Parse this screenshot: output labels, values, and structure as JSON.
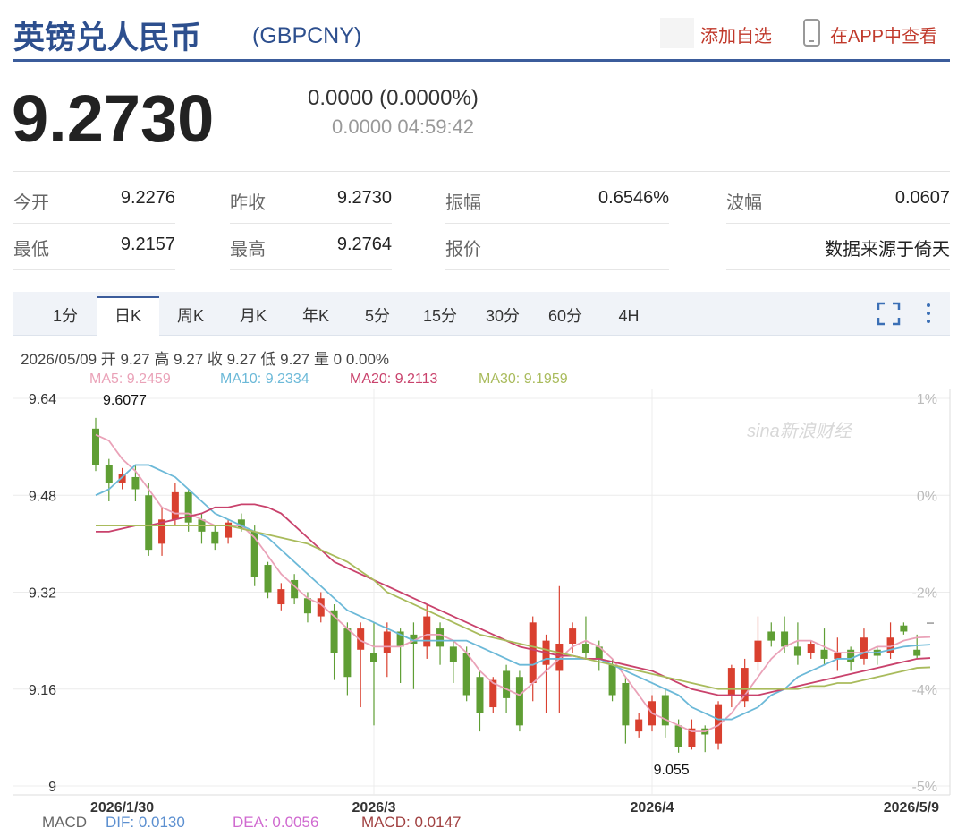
{
  "header": {
    "title": "英镑兑人民币",
    "code": "(GBPCNY)",
    "add_watch": "添加自选",
    "open_app": "在APP中查看"
  },
  "quote": {
    "price": "9.2730",
    "change": "0.0000 (0.0000%)",
    "sub": "0.0000 04:59:42"
  },
  "stats": {
    "rows": [
      [
        {
          "label": "今开",
          "value": "9.2276"
        },
        {
          "label": "昨收",
          "value": "9.2730"
        },
        {
          "label": "振幅",
          "value": "0.6546%"
        },
        {
          "label": "波幅",
          "value": "0.0607"
        }
      ],
      [
        {
          "label": "最低",
          "value": "9.2157"
        },
        {
          "label": "最高",
          "value": "9.2764"
        },
        {
          "label": "报价"
        },
        {
          "value": "数据来源于倚天"
        }
      ]
    ]
  },
  "tabs": [
    "1分",
    "日K",
    "周K",
    "月K",
    "年K",
    "5分",
    "15分",
    "30分",
    "60分",
    "4H"
  ],
  "info_line": "2026/05/09 开 9.27 高 9.27 收 9.27 低 9.27 量 0 0.00%",
  "watermark": "sina新浪财经",
  "macd": {
    "title": "MACD",
    "dif": "DIF: 0.0130",
    "dea": "DEA: 0.0056",
    "macd": "MACD: 0.0147"
  },
  "chart_data": {
    "type": "candlestick",
    "categories": [
      "2026/1/30",
      null,
      null,
      null,
      null,
      null,
      null,
      null,
      null,
      null,
      null,
      null,
      null,
      null,
      null,
      null,
      null,
      null,
      null,
      null,
      null,
      "2026/3",
      null,
      null,
      null,
      null,
      null,
      null,
      null,
      null,
      null,
      null,
      null,
      null,
      null,
      null,
      null,
      null,
      null,
      null,
      null,
      null,
      "2026/4",
      null,
      null,
      null,
      null,
      null,
      null,
      null,
      null,
      null,
      null,
      null,
      null,
      null,
      null,
      null,
      null,
      null,
      null,
      null,
      null,
      "2026/5/9"
    ],
    "open": [
      9.59,
      9.53,
      9.5,
      9.51,
      9.48,
      9.4,
      9.44,
      9.485,
      9.44,
      9.42,
      9.41,
      9.44,
      9.42,
      9.365,
      9.3,
      9.34,
      9.31,
      9.28,
      9.29,
      9.26,
      9.225,
      9.22,
      9.22,
      9.255,
      9.25,
      9.23,
      9.26,
      9.23,
      9.22,
      9.18,
      9.13,
      9.19,
      9.18,
      9.17,
      9.2,
      9.19,
      9.235,
      9.235,
      9.23,
      9.2,
      9.17,
      9.09,
      9.1,
      9.15,
      9.1,
      9.065,
      9.095,
      9.07,
      9.15,
      9.14,
      9.205,
      9.255,
      9.255,
      9.23,
      9.22,
      9.225,
      9.21,
      9.225,
      9.21,
      9.225,
      9.22,
      9.265,
      9.225,
      9.27
    ],
    "high": [
      9.6077,
      9.54,
      9.525,
      9.53,
      9.5,
      9.46,
      9.5,
      9.49,
      9.45,
      9.43,
      9.44,
      9.45,
      9.43,
      9.37,
      9.335,
      9.35,
      9.32,
      9.32,
      9.3,
      9.27,
      9.27,
      9.27,
      9.27,
      9.26,
      9.27,
      9.3,
      9.27,
      9.24,
      9.23,
      9.19,
      9.18,
      9.2,
      9.19,
      9.28,
      9.25,
      9.33,
      9.27,
      9.28,
      9.24,
      9.21,
      9.18,
      9.12,
      9.15,
      9.16,
      9.11,
      9.11,
      9.1,
      9.14,
      9.2,
      9.21,
      9.28,
      9.27,
      9.28,
      9.27,
      9.24,
      9.26,
      9.245,
      9.23,
      9.26,
      9.23,
      9.27,
      9.27,
      9.25,
      9.27
    ],
    "low": [
      9.52,
      9.47,
      9.49,
      9.47,
      9.38,
      9.38,
      9.43,
      9.42,
      9.4,
      9.39,
      9.4,
      9.42,
      9.33,
      9.31,
      9.29,
      9.3,
      9.27,
      9.27,
      9.175,
      9.15,
      9.13,
      9.1,
      9.18,
      9.17,
      9.16,
      9.21,
      9.2,
      9.17,
      9.14,
      9.09,
      9.12,
      9.12,
      9.09,
      9.14,
      9.12,
      9.12,
      9.22,
      9.21,
      9.19,
      9.14,
      9.07,
      9.08,
      9.09,
      9.08,
      9.055,
      9.06,
      9.0559,
      9.06,
      9.13,
      9.13,
      9.19,
      9.23,
      9.22,
      9.2,
      9.21,
      9.2,
      9.19,
      9.19,
      9.2,
      9.2,
      9.21,
      9.25,
      9.21,
      9.27
    ],
    "close": [
      9.53,
      9.5,
      9.515,
      9.49,
      9.39,
      9.44,
      9.485,
      9.435,
      9.42,
      9.4,
      9.435,
      9.425,
      9.345,
      9.32,
      9.325,
      9.31,
      9.285,
      9.31,
      9.22,
      9.18,
      9.26,
      9.205,
      9.255,
      9.23,
      9.235,
      9.28,
      9.23,
      9.205,
      9.15,
      9.12,
      9.175,
      9.145,
      9.1,
      9.27,
      9.24,
      9.235,
      9.26,
      9.22,
      9.21,
      9.15,
      9.1,
      9.11,
      9.14,
      9.1,
      9.065,
      9.095,
      9.085,
      9.135,
      9.195,
      9.195,
      9.24,
      9.24,
      9.23,
      9.215,
      9.235,
      9.21,
      9.22,
      9.205,
      9.245,
      9.215,
      9.245,
      9.255,
      9.215,
      9.27
    ],
    "up_color": "#d9402f",
    "down_color": "#5f9e34",
    "flat_color": "#999999",
    "series": [
      {
        "name": "MA5",
        "legend_label": "MA5: 9.2459",
        "color": "#eaa2b8",
        "values": [
          9.58,
          9.57,
          9.54,
          9.52,
          9.49,
          9.46,
          9.45,
          9.45,
          9.44,
          9.43,
          9.43,
          9.43,
          9.41,
          9.38,
          9.35,
          9.33,
          9.31,
          9.3,
          9.28,
          9.26,
          9.24,
          9.23,
          9.23,
          9.23,
          9.24,
          9.25,
          9.25,
          9.24,
          9.22,
          9.19,
          9.17,
          9.16,
          9.15,
          9.17,
          9.19,
          9.21,
          9.23,
          9.24,
          9.23,
          9.21,
          9.18,
          9.15,
          9.12,
          9.11,
          9.1,
          9.09,
          9.09,
          9.1,
          9.12,
          9.15,
          9.18,
          9.21,
          9.23,
          9.24,
          9.24,
          9.23,
          9.22,
          9.22,
          9.22,
          9.23,
          9.23,
          9.24,
          9.245,
          9.2459
        ]
      },
      {
        "name": "MA10",
        "legend_label": "MA10: 9.2334",
        "color": "#6cb9d8",
        "values": [
          9.48,
          9.49,
          9.51,
          9.53,
          9.53,
          9.52,
          9.51,
          9.49,
          9.47,
          9.45,
          9.44,
          9.43,
          9.42,
          9.41,
          9.39,
          9.37,
          9.35,
          9.33,
          9.31,
          9.29,
          9.28,
          9.27,
          9.26,
          9.25,
          9.24,
          9.24,
          9.24,
          9.24,
          9.24,
          9.23,
          9.22,
          9.21,
          9.2,
          9.2,
          9.21,
          9.21,
          9.21,
          9.21,
          9.21,
          9.2,
          9.19,
          9.18,
          9.17,
          9.16,
          9.15,
          9.13,
          9.12,
          9.11,
          9.11,
          9.12,
          9.13,
          9.15,
          9.16,
          9.18,
          9.19,
          9.2,
          9.21,
          9.21,
          9.22,
          9.22,
          9.225,
          9.23,
          9.232,
          9.2334
        ]
      },
      {
        "name": "MA20",
        "legend_label": "MA20: 9.2113",
        "color": "#c9426c",
        "values": [
          9.42,
          9.42,
          9.425,
          9.43,
          9.43,
          9.435,
          9.44,
          9.445,
          9.45,
          9.46,
          9.46,
          9.465,
          9.465,
          9.46,
          9.45,
          9.43,
          9.41,
          9.39,
          9.37,
          9.36,
          9.35,
          9.34,
          9.33,
          9.32,
          9.31,
          9.3,
          9.29,
          9.28,
          9.27,
          9.26,
          9.25,
          9.24,
          9.23,
          9.225,
          9.22,
          9.215,
          9.215,
          9.21,
          9.21,
          9.205,
          9.2,
          9.195,
          9.19,
          9.18,
          9.17,
          9.16,
          9.155,
          9.15,
          9.15,
          9.15,
          9.15,
          9.155,
          9.16,
          9.165,
          9.17,
          9.175,
          9.18,
          9.185,
          9.19,
          9.195,
          9.2,
          9.205,
          9.21,
          9.2113
        ]
      },
      {
        "name": "MA30",
        "legend_label": "MA30: 9.1959",
        "color": "#a9bb5c",
        "values": [
          9.43,
          9.43,
          9.43,
          9.43,
          9.43,
          9.43,
          9.43,
          9.43,
          9.43,
          9.43,
          9.43,
          9.425,
          9.42,
          9.415,
          9.41,
          9.405,
          9.4,
          9.39,
          9.38,
          9.37,
          9.355,
          9.34,
          9.32,
          9.31,
          9.3,
          9.29,
          9.28,
          9.27,
          9.26,
          9.25,
          9.245,
          9.24,
          9.235,
          9.23,
          9.225,
          9.22,
          9.215,
          9.21,
          9.205,
          9.2,
          9.195,
          9.19,
          9.185,
          9.18,
          9.175,
          9.17,
          9.165,
          9.16,
          9.16,
          9.16,
          9.16,
          9.16,
          9.16,
          9.16,
          9.165,
          9.165,
          9.17,
          9.17,
          9.175,
          9.18,
          9.185,
          9.19,
          9.195,
          9.1959
        ]
      }
    ],
    "ylim": [
      9,
      9.64
    ],
    "yticks": [
      9.64,
      9.48,
      9.32,
      9.16,
      9
    ],
    "y2tick_labels": [
      "1%",
      "0%",
      "-2%",
      "-4%",
      "-5%"
    ],
    "grid": true
  }
}
